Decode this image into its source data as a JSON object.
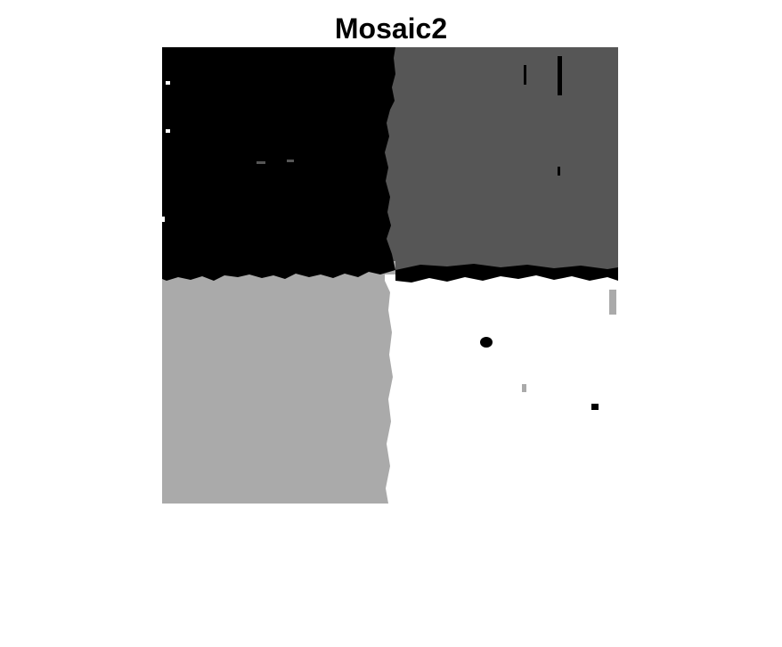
{
  "figure": {
    "title": "Mosaic2",
    "background_color": "#ffffff"
  },
  "segmentation_image": {
    "description_type": "grayscale-segmentation-map",
    "regions": [
      {
        "name": "top-left",
        "color": "#000000"
      },
      {
        "name": "top-right",
        "color": "#565656"
      },
      {
        "name": "bottom-left",
        "color": "#aaaaaa"
      },
      {
        "name": "bottom-right",
        "color": "#ffffff"
      }
    ]
  }
}
